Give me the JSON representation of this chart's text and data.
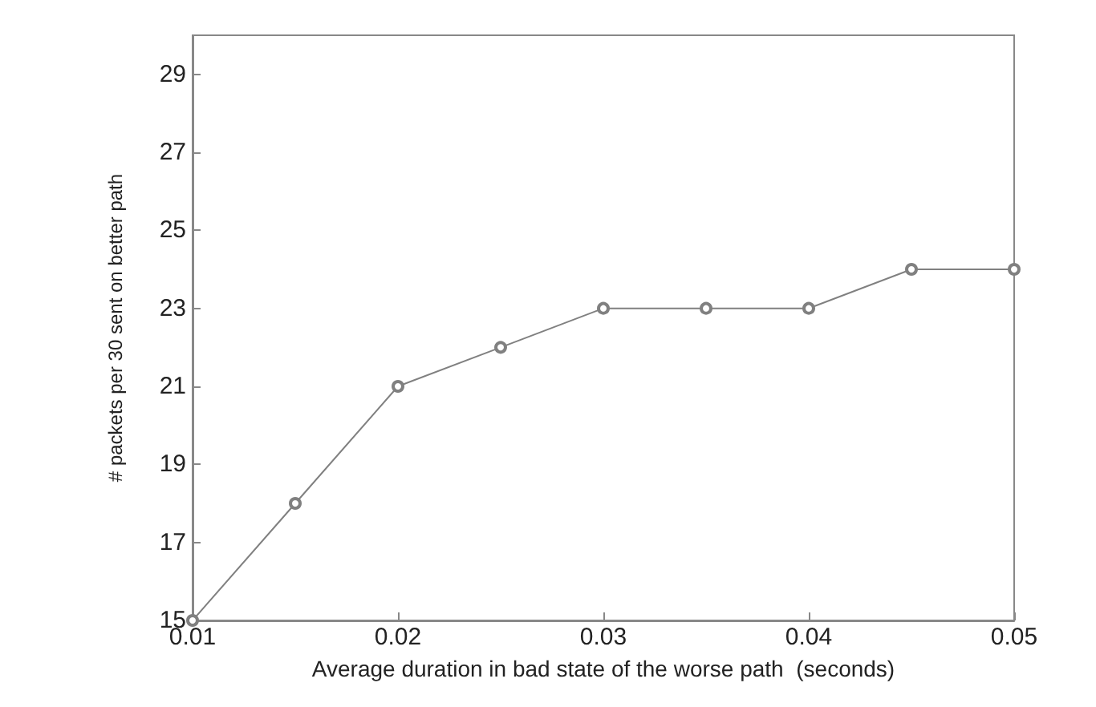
{
  "chart_data": {
    "type": "line",
    "xlabel": "Average duration in bad state of the worse path  (seconds)",
    "ylabel": "# packets per 30 sent on better path",
    "x": [
      0.01,
      0.015,
      0.02,
      0.025,
      0.03,
      0.035,
      0.04,
      0.045,
      0.05
    ],
    "series": [
      {
        "color": "#808080",
        "values": [
          15,
          18,
          21,
          22,
          23,
          23,
          23,
          24,
          24
        ]
      }
    ],
    "xlim": [
      0.01,
      0.05
    ],
    "xticks": [
      0.01,
      0.02,
      0.03,
      0.04,
      0.05
    ],
    "ylim": [
      15,
      30
    ],
    "yticks": [
      15,
      17,
      19,
      21,
      23,
      25,
      27,
      29
    ],
    "marker": "circle",
    "line_style": "solid"
  }
}
